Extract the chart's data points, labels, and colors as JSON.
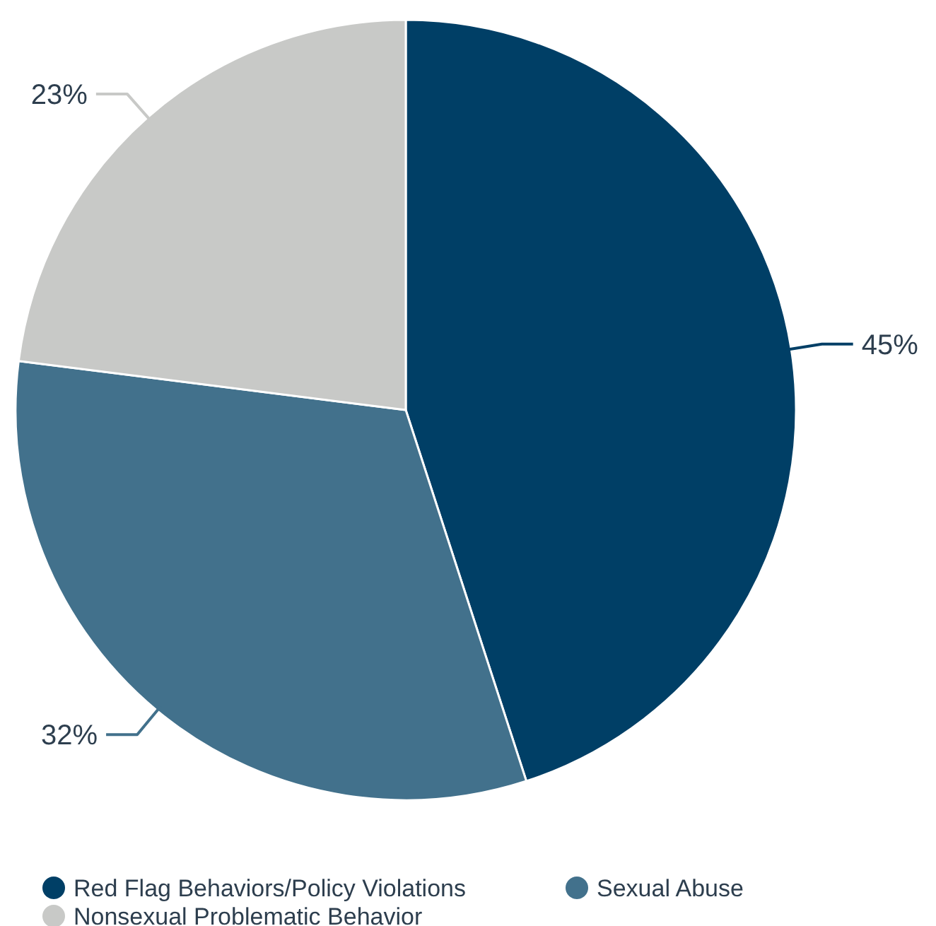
{
  "chart_data": {
    "type": "pie",
    "categories": [
      "Red Flag Behaviors/Policy Violations",
      "Sexual Abuse",
      "Nonsexual Problematic Behavior"
    ],
    "values": [
      45,
      32,
      23
    ],
    "colors": [
      "#003f66",
      "#42718c",
      "#c8c9c7"
    ],
    "value_labels": [
      "45%",
      "32%",
      "23%"
    ],
    "legend": "bottom"
  }
}
